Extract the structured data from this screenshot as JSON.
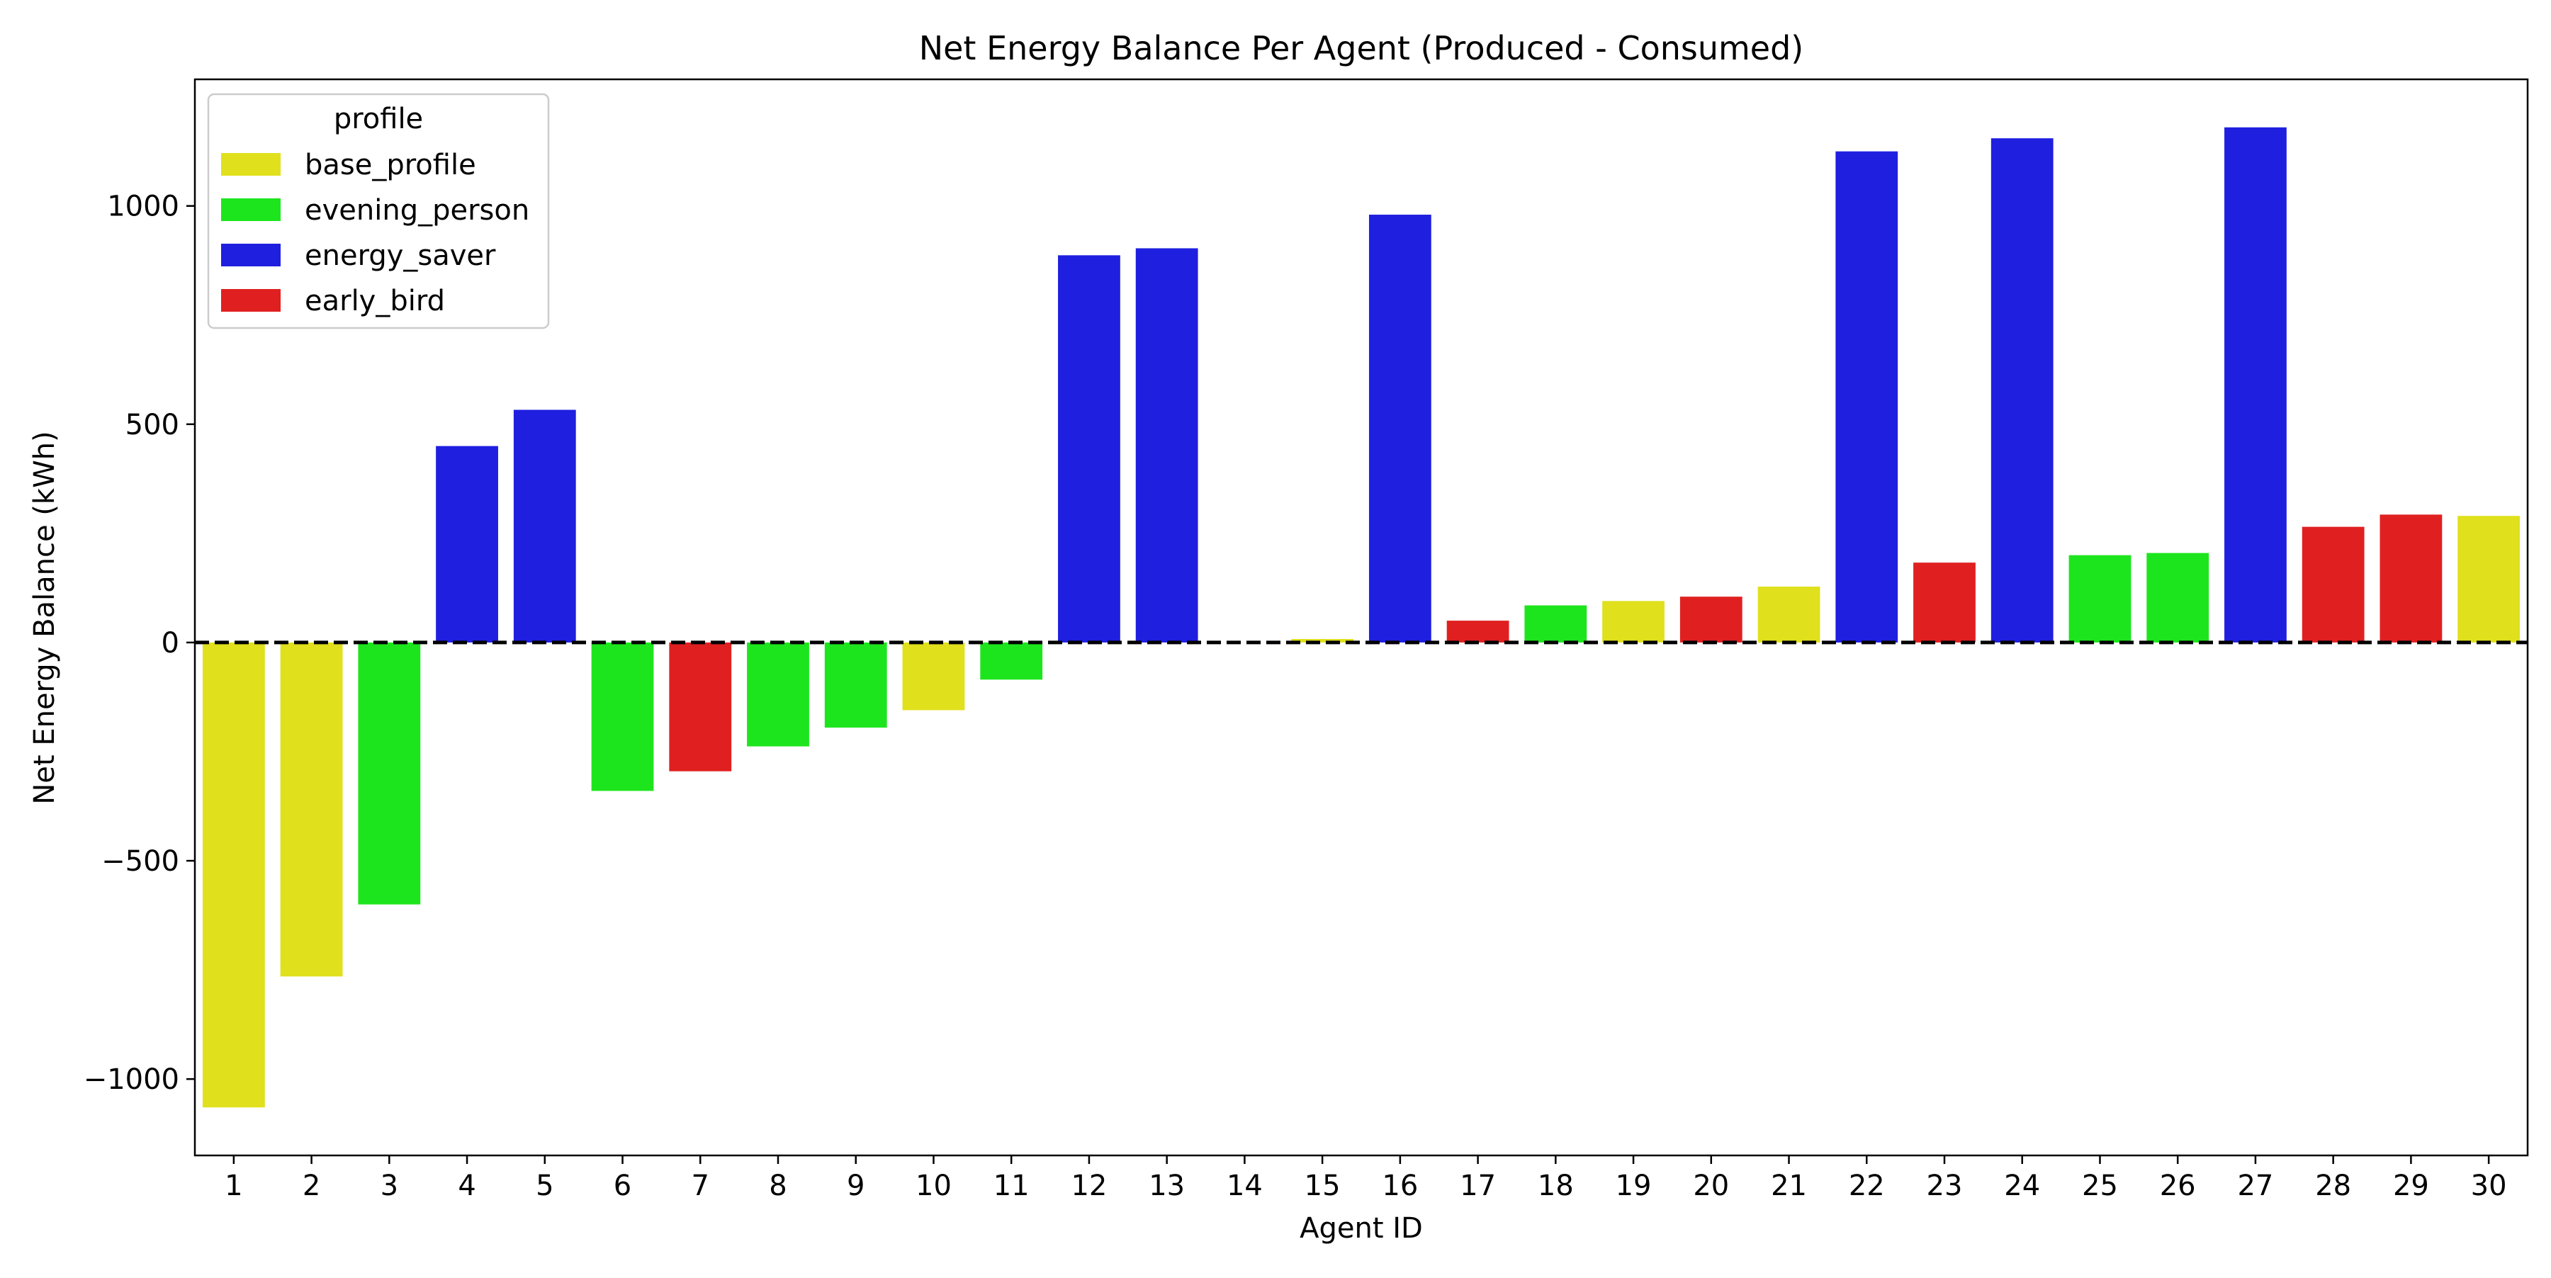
{
  "chart_data": {
    "type": "bar",
    "title": "Net Energy Balance Per Agent (Produced - Consumed)",
    "xlabel": "Agent ID",
    "ylabel": "Net Energy Balance (kWh)",
    "ylim": [
      -1175,
      1290
    ],
    "yticks": [
      -1000,
      -500,
      0,
      500,
      1000
    ],
    "ytick_labels": [
      "−1000",
      "−500",
      "0",
      "500",
      "1000"
    ],
    "zero_line": {
      "value": 0,
      "style": "dashed",
      "color": "#000000"
    },
    "grid": false,
    "legend": {
      "title": "profile",
      "placement": "top-left",
      "entries": [
        {
          "label": "base_profile",
          "color": "#e0e01d"
        },
        {
          "label": "evening_person",
          "color": "#1de51d"
        },
        {
          "label": "energy_saver",
          "color": "#1f1fe0"
        },
        {
          "label": "early_bird",
          "color": "#e02020"
        }
      ]
    },
    "categories": [
      "1",
      "2",
      "3",
      "4",
      "5",
      "6",
      "7",
      "8",
      "9",
      "10",
      "11",
      "12",
      "13",
      "14",
      "15",
      "16",
      "17",
      "18",
      "19",
      "20",
      "21",
      "22",
      "23",
      "24",
      "25",
      "26",
      "27",
      "28",
      "29",
      "30"
    ],
    "values": [
      -1065,
      -765,
      -600,
      450,
      533,
      -340,
      -295,
      -238,
      -195,
      -155,
      -85,
      887,
      903,
      0,
      8,
      980,
      50,
      85,
      95,
      105,
      128,
      1125,
      183,
      1155,
      200,
      205,
      1180,
      265,
      293,
      290
    ],
    "profiles": [
      "base_profile",
      "base_profile",
      "evening_person",
      "energy_saver",
      "energy_saver",
      "evening_person",
      "early_bird",
      "evening_person",
      "evening_person",
      "base_profile",
      "evening_person",
      "energy_saver",
      "energy_saver",
      "energy_saver",
      "base_profile",
      "energy_saver",
      "early_bird",
      "evening_person",
      "base_profile",
      "early_bird",
      "base_profile",
      "energy_saver",
      "early_bird",
      "energy_saver",
      "evening_person",
      "evening_person",
      "energy_saver",
      "early_bird",
      "early_bird",
      "base_profile"
    ]
  }
}
